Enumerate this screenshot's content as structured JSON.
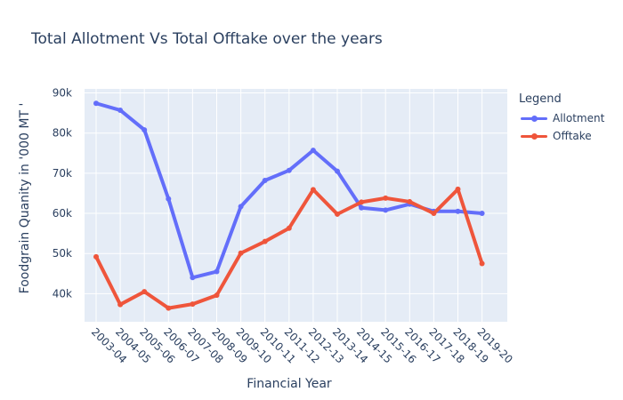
{
  "chart_data": {
    "type": "line",
    "title": "Total Allotment Vs Total Offtake over the years",
    "xlabel": "Financial Year",
    "ylabel": "Foodgrain Quanity in '000 MT '",
    "categories": [
      "2003-04",
      "2004-05",
      "2005-06",
      "2006-07",
      "2007-08",
      "2008-09",
      "2009-10",
      "2010-11",
      "2011-12",
      "2012-13",
      "2013-14",
      "2014-15",
      "2015-16",
      "2016-17",
      "2017-18",
      "2018-19",
      "2019-20"
    ],
    "ylim": [
      33000,
      91000
    ],
    "yticks": [
      40000,
      50000,
      60000,
      70000,
      80000,
      90000
    ],
    "ytick_labels": [
      "40k",
      "50k",
      "60k",
      "70k",
      "80k",
      "90k"
    ],
    "grid": true,
    "legend_title": "Legend",
    "legend_position": "top-right",
    "series": [
      {
        "name": "Allotment",
        "color": "#636efa",
        "values": [
          87400,
          85700,
          80800,
          63600,
          44000,
          45500,
          61700,
          68200,
          70700,
          75700,
          70500,
          61400,
          60800,
          62300,
          60500,
          60500,
          60000
        ]
      },
      {
        "name": "Offtake",
        "color": "#ef553b",
        "values": [
          49200,
          37300,
          40500,
          36400,
          37400,
          39600,
          50100,
          53000,
          56300,
          65900,
          59800,
          62800,
          63800,
          62900,
          60000,
          66000,
          47500
        ]
      }
    ]
  }
}
